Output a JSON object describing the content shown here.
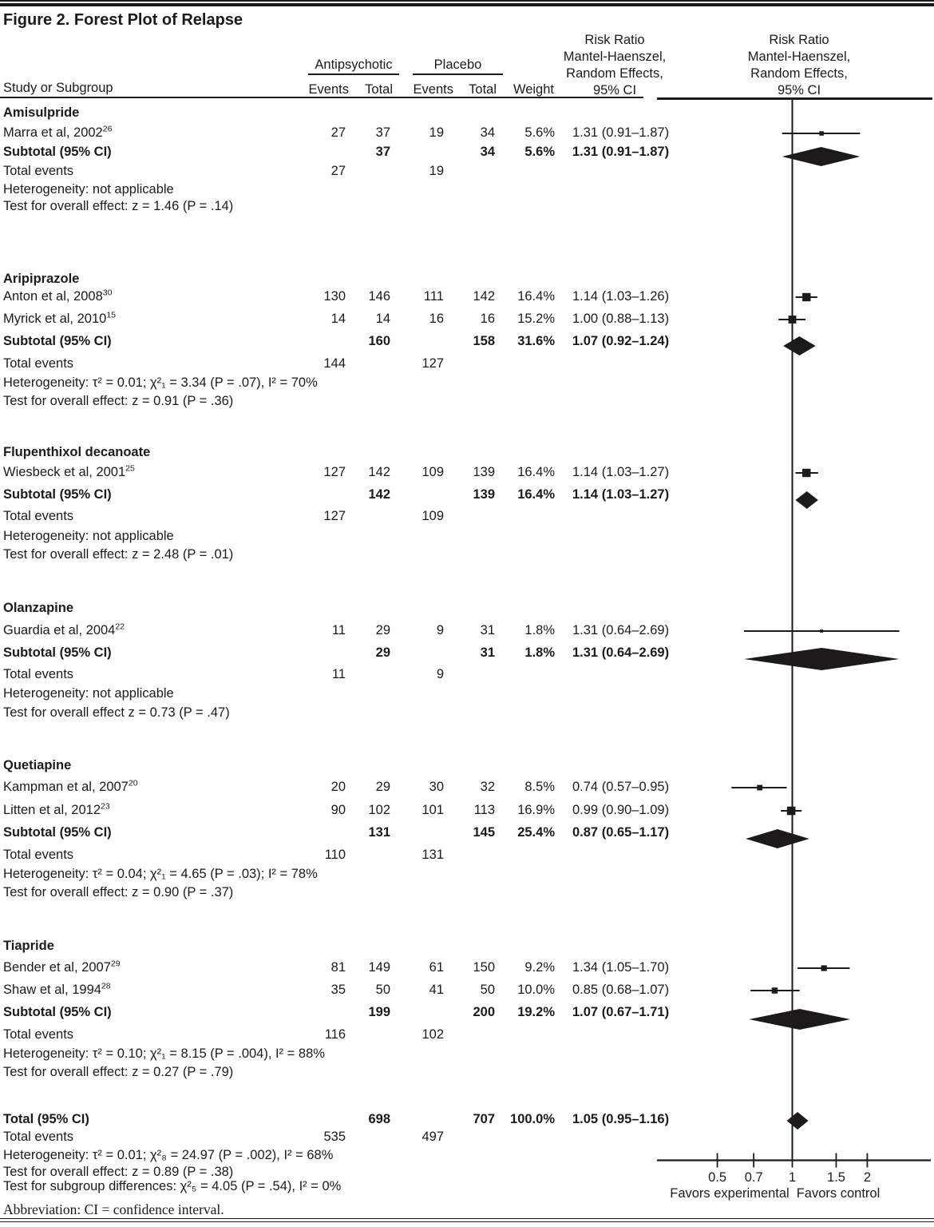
{
  "figure": {
    "title": "Figure 2. Forest Plot of Relapse",
    "abbreviation_note": "Abbreviation: CI = confidence interval."
  },
  "table_header": {
    "study_col": "Study or Subgroup",
    "group1": "Antipsychotic",
    "group2": "Placebo",
    "events": "Events",
    "total": "Total",
    "weight": "Weight",
    "rr_header": [
      "Risk Ratio",
      "Mantel-Haenszel,",
      "Random Effects,",
      "95% CI"
    ],
    "plot_header": [
      "Risk Ratio",
      "Mantel-Haenszel,",
      "Random Effects,",
      "95% CI"
    ]
  },
  "chart_data": {
    "type": "forest",
    "x_scale": "log10",
    "xlim": [
      0.4,
      3.2
    ],
    "axis": {
      "ticks": [
        0.5,
        0.7,
        1,
        1.5,
        2
      ],
      "favors_left": "Favors experimental",
      "favors_right": "Favors control",
      "reference_line": 1
    },
    "sections": [
      {
        "name": "Amisulpride",
        "studies": [
          {
            "label": "Marra et al, 2002",
            "ref": "26",
            "events1": "27",
            "total1": "37",
            "events2": "19",
            "total2": "34",
            "weight": "5.6%",
            "rr_text": "1.31 (0.91–1.87)",
            "rr": 1.31,
            "lo": 0.91,
            "hi": 1.87,
            "weight_pct": 5.6
          }
        ],
        "subtotal": {
          "label": "Subtotal (95% CI)",
          "total1": "37",
          "total2": "34",
          "weight": "5.6%",
          "rr_text": "1.31 (0.91–1.87)",
          "rr": 1.31,
          "lo": 0.91,
          "hi": 1.87
        },
        "total_events": {
          "label": "Total events",
          "events1": "27",
          "events2": "19"
        },
        "heterogeneity": "Heterogeneity: not applicable",
        "test": "Test for overall effect: z = 1.46 (P = .14)"
      },
      {
        "name": "Aripiprazole",
        "studies": [
          {
            "label": "Anton et al, 2008",
            "ref": "30",
            "events1": "130",
            "total1": "146",
            "events2": "111",
            "total2": "142",
            "weight": "16.4%",
            "rr_text": "1.14 (1.03–1.26)",
            "rr": 1.14,
            "lo": 1.03,
            "hi": 1.26,
            "weight_pct": 16.4
          },
          {
            "label": "Myrick et al, 2010",
            "ref": "15",
            "events1": "14",
            "total1": "14",
            "events2": "16",
            "total2": "16",
            "weight": "15.2%",
            "rr_text": "1.00 (0.88–1.13)",
            "rr": 1.0,
            "lo": 0.88,
            "hi": 1.13,
            "weight_pct": 15.2
          }
        ],
        "subtotal": {
          "label": "Subtotal (95% CI)",
          "total1": "160",
          "total2": "158",
          "weight": "31.6%",
          "rr_text": "1.07 (0.92–1.24)",
          "rr": 1.07,
          "lo": 0.92,
          "hi": 1.24
        },
        "total_events": {
          "label": "Total events",
          "events1": "144",
          "events2": "127"
        },
        "heterogeneity": "Heterogeneity: τ² = 0.01; χ²₁ = 3.34 (P = .07), I² = 70%",
        "test": "Test for overall effect: z = 0.91 (P = .36)"
      },
      {
        "name": "Flupenthixol decanoate",
        "studies": [
          {
            "label": "Wiesbeck et al, 2001",
            "ref": "25",
            "events1": "127",
            "total1": "142",
            "events2": "109",
            "total2": "139",
            "weight": "16.4%",
            "rr_text": "1.14 (1.03–1.27)",
            "rr": 1.14,
            "lo": 1.03,
            "hi": 1.27,
            "weight_pct": 16.4
          }
        ],
        "subtotal": {
          "label": "Subtotal (95% CI)",
          "total1": "142",
          "total2": "139",
          "weight": "16.4%",
          "rr_text": "1.14 (1.03–1.27)",
          "rr": 1.14,
          "lo": 1.03,
          "hi": 1.27
        },
        "total_events": {
          "label": "Total events",
          "events1": "127",
          "events2": "109"
        },
        "heterogeneity": "Heterogeneity: not applicable",
        "test": "Test for overall effect: z = 2.48 (P = .01)"
      },
      {
        "name": "Olanzapine",
        "studies": [
          {
            "label": "Guardia et al, 2004",
            "ref": "22",
            "events1": "11",
            "total1": "29",
            "events2": "9",
            "total2": "31",
            "weight": "1.8%",
            "rr_text": "1.31 (0.64–2.69)",
            "rr": 1.31,
            "lo": 0.64,
            "hi": 2.69,
            "weight_pct": 1.8
          }
        ],
        "subtotal": {
          "label": "Subtotal (95% CI)",
          "total1": "29",
          "total2": "31",
          "weight": "1.8%",
          "rr_text": "1.31 (0.64–2.69)",
          "rr": 1.31,
          "lo": 0.64,
          "hi": 2.69
        },
        "total_events": {
          "label": "Total events",
          "events1": "11",
          "events2": "9"
        },
        "heterogeneity": "Heterogeneity: not applicable",
        "test": "Test for overall effect z = 0.73 (P = .47)"
      },
      {
        "name": "Quetiapine",
        "studies": [
          {
            "label": "Kampman et al, 2007",
            "ref": "20",
            "events1": "20",
            "total1": "29",
            "events2": "30",
            "total2": "32",
            "weight": "8.5%",
            "rr_text": "0.74 (0.57–0.95)",
            "rr": 0.74,
            "lo": 0.57,
            "hi": 0.95,
            "weight_pct": 8.5
          },
          {
            "label": "Litten et al, 2012",
            "ref": "23",
            "events1": "90",
            "total1": "102",
            "events2": "101",
            "total2": "113",
            "weight": "16.9%",
            "rr_text": "0.99 (0.90–1.09)",
            "rr": 0.99,
            "lo": 0.9,
            "hi": 1.09,
            "weight_pct": 16.9
          }
        ],
        "subtotal": {
          "label": "Subtotal (95% CI)",
          "total1": "131",
          "total2": "145",
          "weight": "25.4%",
          "rr_text": "0.87 (0.65–1.17)",
          "rr": 0.87,
          "lo": 0.65,
          "hi": 1.17
        },
        "total_events": {
          "label": "Total events",
          "events1": "110",
          "events2": "131"
        },
        "heterogeneity": "Heterogeneity: τ² = 0.04; χ²₁ = 4.65 (P = .03); I² = 78%",
        "test": "Test for overall effect: z = 0.90 (P = .37)"
      },
      {
        "name": "Tiapride",
        "studies": [
          {
            "label": "Bender et al, 2007",
            "ref": "29",
            "events1": "81",
            "total1": "149",
            "events2": "61",
            "total2": "150",
            "weight": "9.2%",
            "rr_text": "1.34 (1.05–1.70)",
            "rr": 1.34,
            "lo": 1.05,
            "hi": 1.7,
            "weight_pct": 9.2
          },
          {
            "label": "Shaw et al, 1994",
            "ref": "28",
            "events1": "35",
            "total1": "50",
            "events2": "41",
            "total2": "50",
            "weight": "10.0%",
            "rr_text": "0.85 (0.68–1.07)",
            "rr": 0.85,
            "lo": 0.68,
            "hi": 1.07,
            "weight_pct": 10.0
          }
        ],
        "subtotal": {
          "label": "Subtotal (95% CI)",
          "total1": "199",
          "total2": "200",
          "weight": "19.2%",
          "rr_text": "1.07 (0.67–1.71)",
          "rr": 1.07,
          "lo": 0.67,
          "hi": 1.71
        },
        "total_events": {
          "label": "Total events",
          "events1": "116",
          "events2": "102"
        },
        "heterogeneity": "Heterogeneity: τ² = 0.10; χ²₁ = 8.15 (P = .004), I² = 88%",
        "test": "Test for overall effect: z = 0.27 (P = .79)"
      }
    ],
    "total": {
      "label": "Total (95% CI)",
      "total1": "698",
      "total2": "707",
      "weight": "100.0%",
      "rr_text": "1.05 (0.95–1.16)",
      "rr": 1.05,
      "lo": 0.95,
      "hi": 1.16,
      "total_events": {
        "label": "Total events",
        "events1": "535",
        "events2": "497"
      },
      "heterogeneity": "Heterogeneity: τ² = 0.01; χ²₈ = 24.97 (P = .002), I² = 68%",
      "test_overall": "Test for overall effect: z = 0.89 (P = .38)",
      "test_subgroups": "Test for subgroup differences: χ²₅ = 4.05 (P = .54), I² = 0%"
    }
  }
}
